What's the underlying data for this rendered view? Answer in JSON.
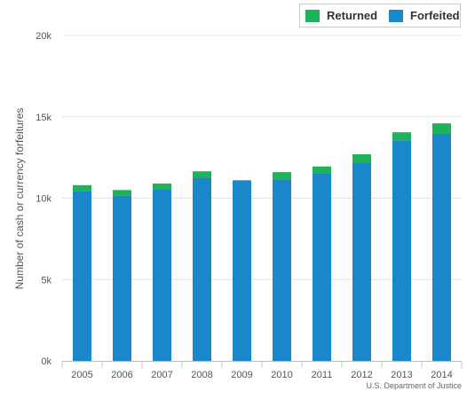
{
  "chart_data": {
    "type": "bar",
    "stacked": true,
    "categories": [
      "2005",
      "2006",
      "2007",
      "2008",
      "2009",
      "2010",
      "2011",
      "2012",
      "2013",
      "2014"
    ],
    "series": [
      {
        "name": "Forfeited",
        "color": "#1a87cb",
        "values": [
          10450,
          10150,
          10550,
          11250,
          11100,
          11150,
          11500,
          12200,
          13550,
          13950
        ]
      },
      {
        "name": "Returned",
        "color": "#1eb25a",
        "values": [
          350,
          350,
          350,
          400,
          0,
          450,
          450,
          500,
          500,
          650
        ]
      }
    ],
    "legend_order": [
      "Returned",
      "Forfeited"
    ],
    "ylabel": "Number of cash or currency forfeitures",
    "ylim": [
      0,
      20000
    ],
    "yticks": [
      0,
      5000,
      10000,
      15000,
      20000
    ],
    "ytick_labels": [
      "0k",
      "5k",
      "10k",
      "15k",
      "20k"
    ],
    "grid": true,
    "legend_position": "top-right",
    "source": "U.S. Department of Justice"
  }
}
